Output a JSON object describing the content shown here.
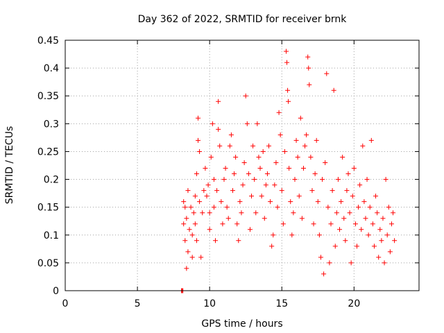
{
  "chart_data": {
    "type": "scatter",
    "title": "Day 362 of 2022, SRMTID for receiver brnk",
    "xlabel": "GPS time / hours",
    "ylabel": "SRMTID / TECUs",
    "xlim": [
      0,
      24.5
    ],
    "ylim": [
      0,
      0.45
    ],
    "xticks": [
      0,
      5,
      10,
      15,
      20
    ],
    "yticks": [
      0,
      0.05,
      0.1,
      0.15,
      0.2,
      0.25,
      0.3,
      0.35,
      0.4,
      0.45
    ],
    "ytick_labels": [
      "0",
      "0.05",
      "0.1",
      "0.15",
      "0.2",
      "0.25",
      "0.3",
      "0.35",
      "0.4",
      "0.45"
    ],
    "grid": true,
    "marker": "+",
    "color": "#ff0000",
    "series": [
      {
        "points": [
          [
            8.05,
            0.0
          ],
          [
            8.1,
            0.0
          ],
          [
            8.15,
            0.0
          ],
          [
            8.2,
            0.16
          ],
          [
            8.2,
            0.12
          ],
          [
            8.3,
            0.09
          ],
          [
            8.3,
            0.15
          ],
          [
            8.4,
            0.04
          ],
          [
            8.4,
            0.13
          ],
          [
            8.5,
            0.07
          ],
          [
            8.5,
            0.18
          ],
          [
            8.6,
            0.11
          ],
          [
            8.7,
            0.15
          ],
          [
            8.8,
            0.1
          ],
          [
            8.8,
            0.06
          ],
          [
            8.9,
            0.14
          ],
          [
            9.0,
            0.12
          ],
          [
            9.0,
            0.17
          ],
          [
            9.1,
            0.21
          ],
          [
            9.1,
            0.09
          ],
          [
            9.2,
            0.31
          ],
          [
            9.2,
            0.27
          ],
          [
            9.3,
            0.25
          ],
          [
            9.3,
            0.16
          ],
          [
            9.4,
            0.06
          ],
          [
            9.5,
            0.14
          ],
          [
            9.6,
            0.18
          ],
          [
            9.7,
            0.22
          ],
          [
            9.8,
            0.17
          ],
          [
            9.9,
            0.19
          ],
          [
            10.0,
            0.14
          ],
          [
            10.0,
            0.11
          ],
          [
            10.1,
            0.24
          ],
          [
            10.2,
            0.3
          ],
          [
            10.3,
            0.2
          ],
          [
            10.3,
            0.15
          ],
          [
            10.4,
            0.09
          ],
          [
            10.5,
            0.18
          ],
          [
            10.6,
            0.34
          ],
          [
            10.6,
            0.29
          ],
          [
            10.7,
            0.26
          ],
          [
            10.8,
            0.16
          ],
          [
            10.9,
            0.12
          ],
          [
            11.0,
            0.2
          ],
          [
            11.1,
            0.22
          ],
          [
            11.2,
            0.15
          ],
          [
            11.3,
            0.13
          ],
          [
            11.4,
            0.26
          ],
          [
            11.5,
            0.28
          ],
          [
            11.6,
            0.18
          ],
          [
            11.7,
            0.21
          ],
          [
            11.8,
            0.24
          ],
          [
            11.9,
            0.12
          ],
          [
            12.0,
            0.09
          ],
          [
            12.1,
            0.16
          ],
          [
            12.2,
            0.14
          ],
          [
            12.3,
            0.19
          ],
          [
            12.4,
            0.23
          ],
          [
            12.5,
            0.35
          ],
          [
            12.6,
            0.3
          ],
          [
            12.7,
            0.21
          ],
          [
            12.8,
            0.11
          ],
          [
            12.9,
            0.17
          ],
          [
            13.0,
            0.26
          ],
          [
            13.1,
            0.2
          ],
          [
            13.2,
            0.14
          ],
          [
            13.3,
            0.3
          ],
          [
            13.4,
            0.24
          ],
          [
            13.5,
            0.22
          ],
          [
            13.6,
            0.17
          ],
          [
            13.7,
            0.25
          ],
          [
            13.8,
            0.13
          ],
          [
            13.9,
            0.19
          ],
          [
            14.0,
            0.21
          ],
          [
            14.1,
            0.26
          ],
          [
            14.2,
            0.16
          ],
          [
            14.3,
            0.08
          ],
          [
            14.4,
            0.1
          ],
          [
            14.5,
            0.19
          ],
          [
            14.6,
            0.23
          ],
          [
            14.7,
            0.15
          ],
          [
            14.8,
            0.32
          ],
          [
            14.9,
            0.28
          ],
          [
            15.0,
            0.18
          ],
          [
            15.1,
            0.12
          ],
          [
            15.2,
            0.25
          ],
          [
            15.3,
            0.43
          ],
          [
            15.35,
            0.41
          ],
          [
            15.4,
            0.36
          ],
          [
            15.45,
            0.34
          ],
          [
            15.5,
            0.22
          ],
          [
            15.6,
            0.16
          ],
          [
            15.7,
            0.1
          ],
          [
            15.8,
            0.14
          ],
          [
            15.9,
            0.2
          ],
          [
            16.0,
            0.27
          ],
          [
            16.1,
            0.24
          ],
          [
            16.2,
            0.17
          ],
          [
            16.3,
            0.31
          ],
          [
            16.4,
            0.13
          ],
          [
            16.5,
            0.22
          ],
          [
            16.6,
            0.26
          ],
          [
            16.7,
            0.28
          ],
          [
            16.8,
            0.42
          ],
          [
            16.85,
            0.4
          ],
          [
            16.9,
            0.37
          ],
          [
            17.0,
            0.24
          ],
          [
            17.1,
            0.18
          ],
          [
            17.2,
            0.12
          ],
          [
            17.3,
            0.21
          ],
          [
            17.4,
            0.27
          ],
          [
            17.5,
            0.16
          ],
          [
            17.6,
            0.1
          ],
          [
            17.7,
            0.06
          ],
          [
            17.8,
            0.2
          ],
          [
            17.9,
            0.03
          ],
          [
            18.0,
            0.23
          ],
          [
            18.1,
            0.39
          ],
          [
            18.2,
            0.15
          ],
          [
            18.3,
            0.05
          ],
          [
            18.4,
            0.12
          ],
          [
            18.5,
            0.18
          ],
          [
            18.6,
            0.36
          ],
          [
            18.7,
            0.08
          ],
          [
            18.8,
            0.14
          ],
          [
            18.9,
            0.2
          ],
          [
            19.0,
            0.11
          ],
          [
            19.1,
            0.16
          ],
          [
            19.2,
            0.24
          ],
          [
            19.3,
            0.13
          ],
          [
            19.4,
            0.09
          ],
          [
            19.5,
            0.18
          ],
          [
            19.6,
            0.21
          ],
          [
            19.7,
            0.14
          ],
          [
            19.8,
            0.05
          ],
          [
            19.9,
            0.17
          ],
          [
            20.0,
            0.22
          ],
          [
            20.1,
            0.12
          ],
          [
            20.2,
            0.08
          ],
          [
            20.3,
            0.15
          ],
          [
            20.4,
            0.19
          ],
          [
            20.5,
            0.11
          ],
          [
            20.6,
            0.26
          ],
          [
            20.7,
            0.16
          ],
          [
            20.8,
            0.13
          ],
          [
            20.9,
            0.2
          ],
          [
            21.0,
            0.1
          ],
          [
            21.1,
            0.15
          ],
          [
            21.2,
            0.27
          ],
          [
            21.3,
            0.12
          ],
          [
            21.4,
            0.08
          ],
          [
            21.5,
            0.17
          ],
          [
            21.6,
            0.14
          ],
          [
            21.7,
            0.06
          ],
          [
            21.8,
            0.11
          ],
          [
            21.9,
            0.09
          ],
          [
            22.0,
            0.13
          ],
          [
            22.1,
            0.05
          ],
          [
            22.2,
            0.2
          ],
          [
            22.3,
            0.1
          ],
          [
            22.4,
            0.15
          ],
          [
            22.5,
            0.07
          ],
          [
            22.6,
            0.12
          ],
          [
            22.7,
            0.14
          ],
          [
            22.8,
            0.09
          ]
        ]
      }
    ]
  }
}
